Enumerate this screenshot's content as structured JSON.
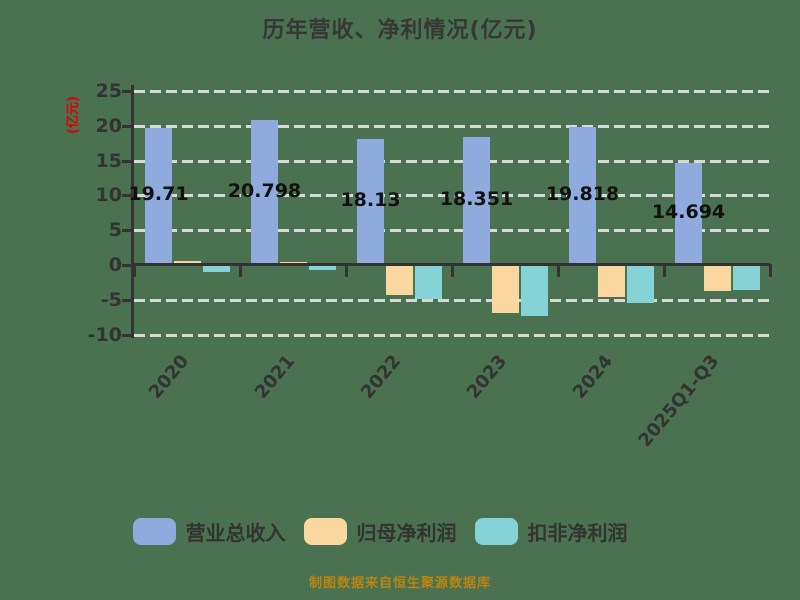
{
  "chart_data": {
    "type": "bar",
    "title": "历年营收、净利情况(亿元)",
    "ylabel": "(亿元)",
    "categories": [
      "2020",
      "2021",
      "2022",
      "2023",
      "2024",
      "2025Q1-Q3"
    ],
    "series": [
      {
        "name": "营业总收入",
        "key": "total-revenue",
        "color": "#8faadc",
        "values": [
          19.71,
          20.798,
          18.13,
          18.351,
          19.818,
          14.694
        ],
        "labels": [
          "19.71",
          "20.798",
          "18.13",
          "18.351",
          "19.818",
          "14.694"
        ]
      },
      {
        "name": "归母净利润",
        "key": "net-profit",
        "color": "#fbd7a0",
        "values": [
          0.6,
          0.4,
          -4.3,
          -6.9,
          -4.6,
          -3.7
        ],
        "values_estimated_from_axis": true
      },
      {
        "name": "扣非净利润",
        "key": "net-profit-excl-nonrecurring",
        "color": "#86d3d7",
        "values": [
          -1.0,
          -0.7,
          -4.9,
          -7.3,
          -5.4,
          -3.6
        ],
        "values_estimated_from_axis": true
      }
    ],
    "ylim": [
      -10,
      25
    ],
    "yticks": [
      25,
      20,
      15,
      10,
      5,
      0,
      -5,
      -10
    ],
    "grid": "horizontal-dashed",
    "legend_position": "bottom"
  },
  "legend": {
    "items": [
      {
        "label": "营业总收入",
        "color": "#8faadc"
      },
      {
        "label": "归母净利润",
        "color": "#fbd7a0"
      },
      {
        "label": "扣非净利润",
        "color": "#86d3d7"
      }
    ]
  },
  "footer": {
    "text": "制图数据来自恒生聚源数据库"
  },
  "colors": {
    "background": "#4a7150",
    "grid": "#d8d8d8",
    "axis": "#333333",
    "ylabel_text": "#e00000",
    "value_label_text": "#111111",
    "footer_text": "#bb8511"
  }
}
